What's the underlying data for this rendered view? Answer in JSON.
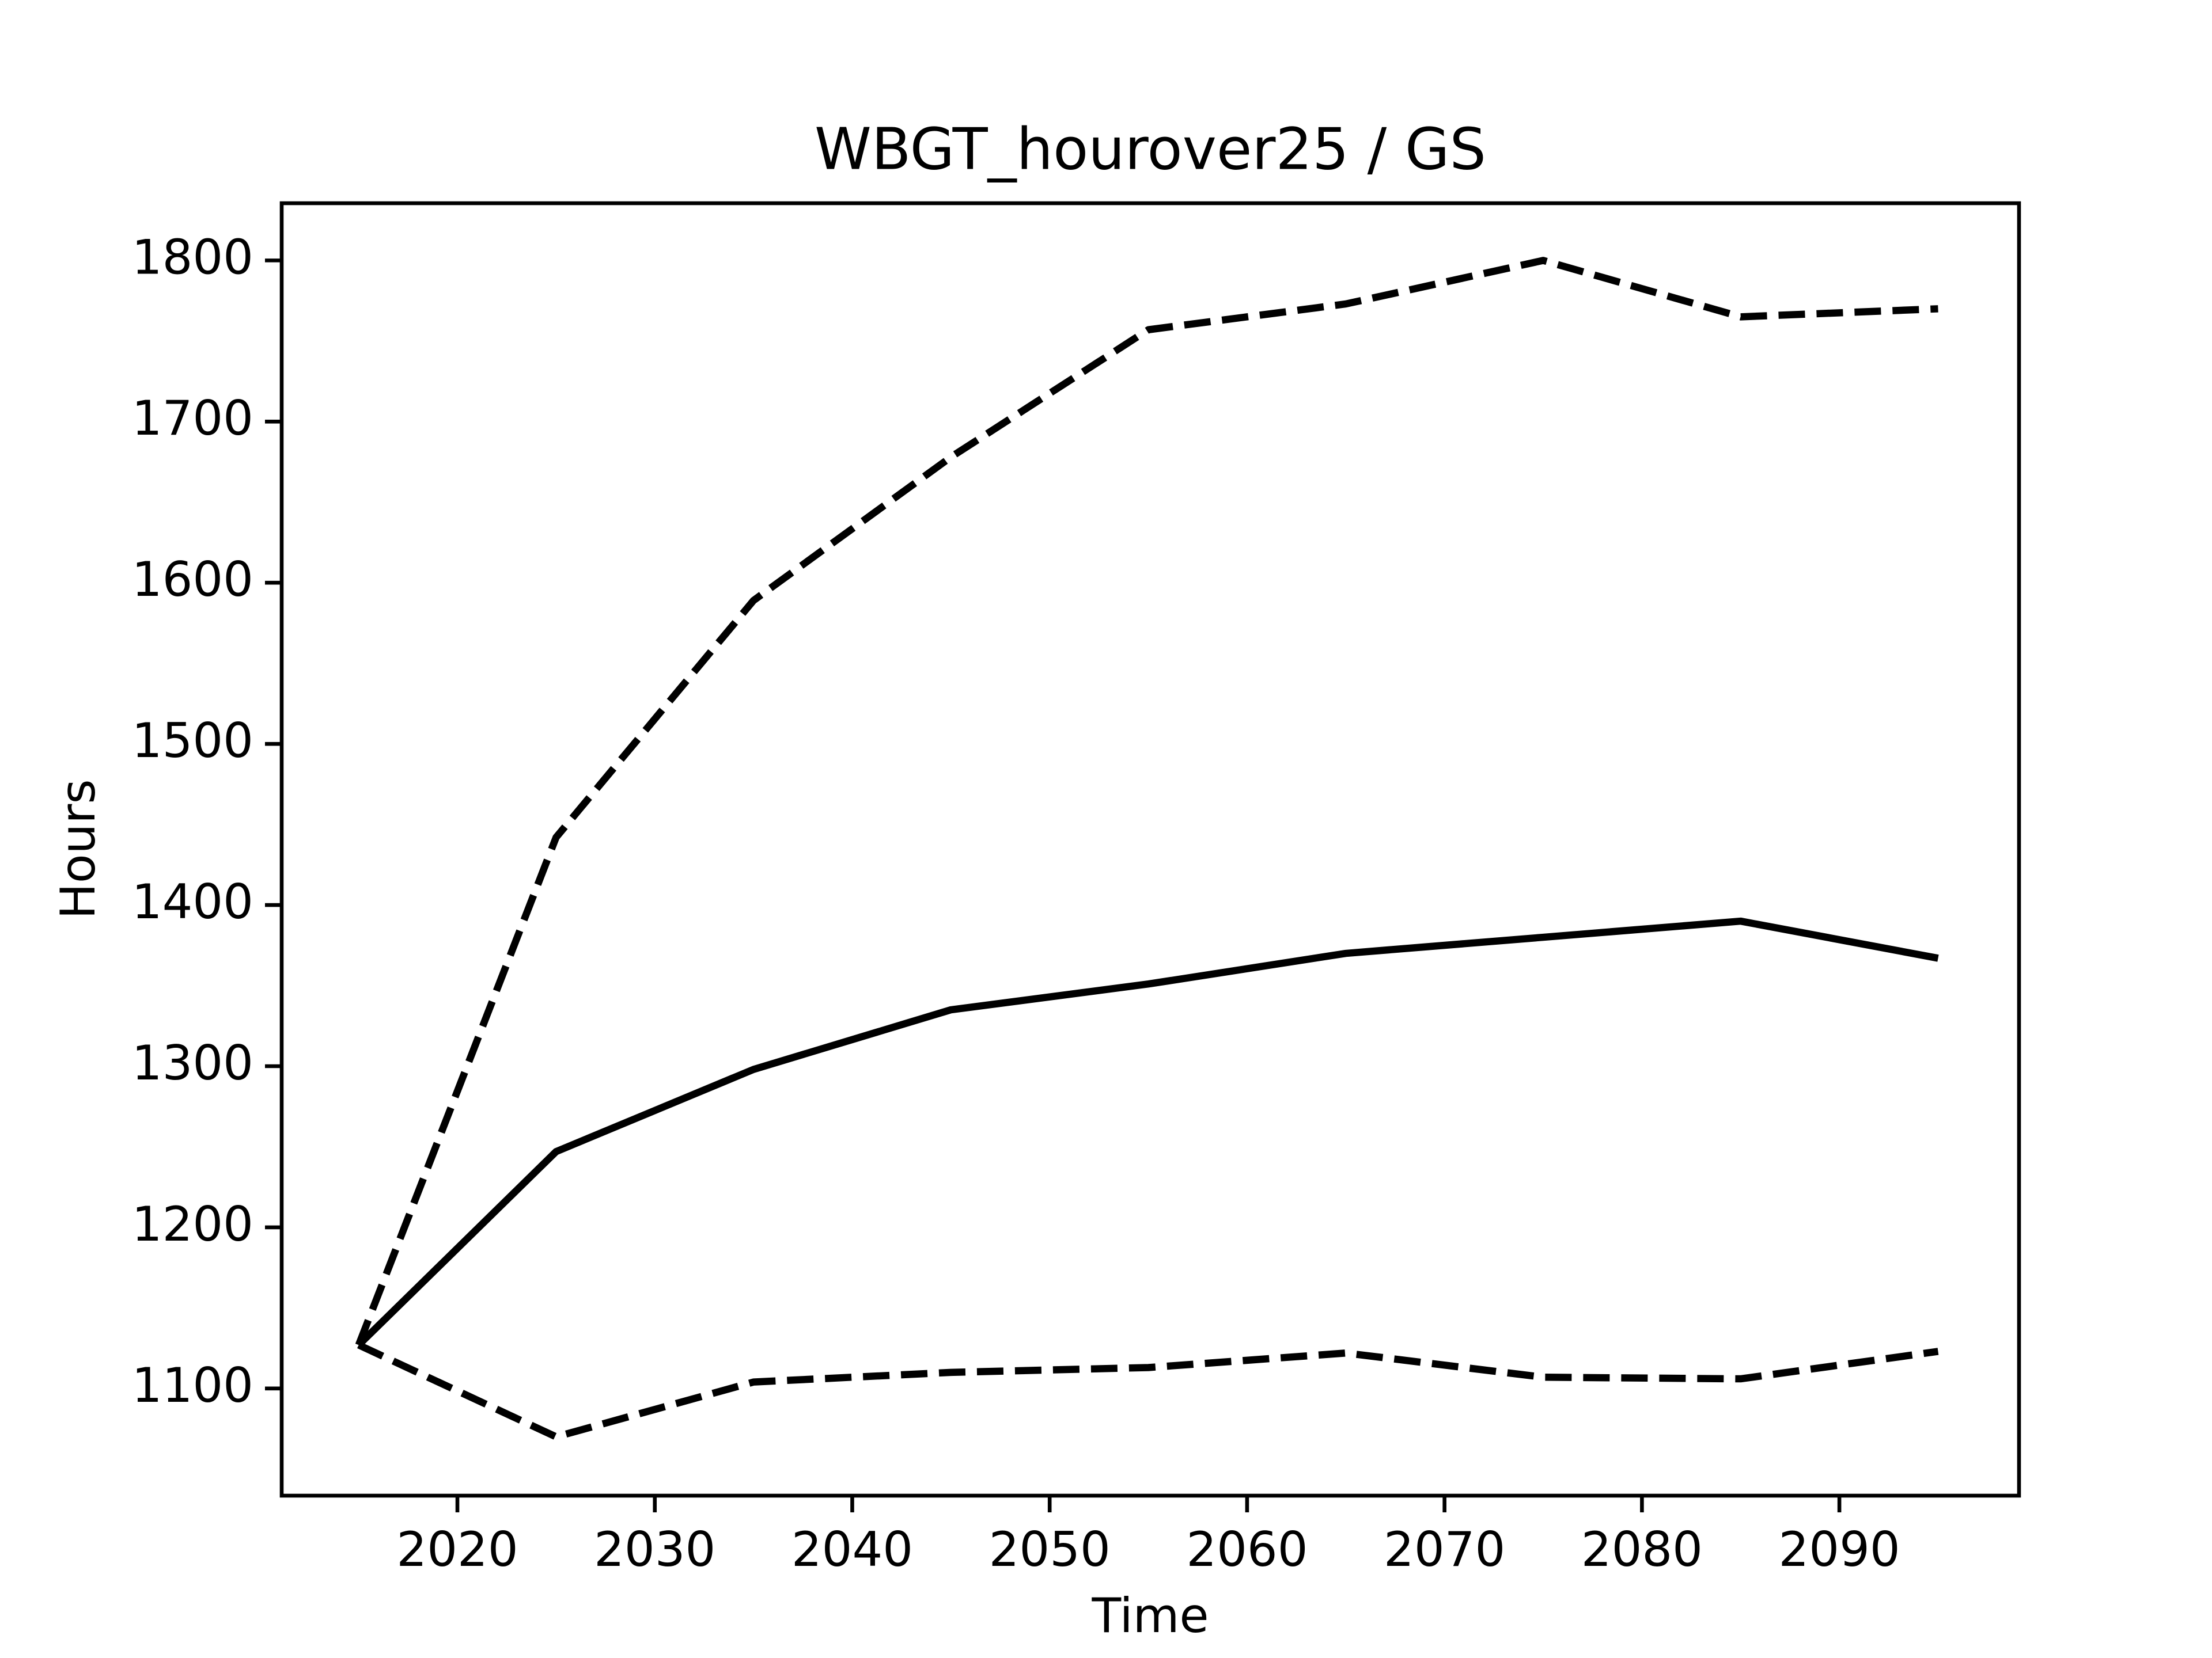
{
  "chart_data": {
    "type": "line",
    "title": "WBGT_hourover25 / GS",
    "x_label": "Time",
    "y_label": "Hours",
    "x": [
      2015,
      2025,
      2035,
      2045,
      2055,
      2065,
      2075,
      2085,
      2095
    ],
    "series": [
      {
        "color": "#000000",
        "linestyle": "solid",
        "values": [
          1127,
          1247,
          1298,
          1335,
          1351,
          1370,
          1380,
          1390,
          1367
        ]
      },
      {
        "color": "#000000",
        "linestyle": "dashed",
        "values": [
          1127,
          1442,
          1589,
          1678,
          1757,
          1773,
          1800,
          1765,
          1770
        ]
      },
      {
        "color": "#000000",
        "linestyle": "dashed",
        "values": [
          1127,
          1070,
          1104,
          1110,
          1113,
          1122,
          1107,
          1106,
          1123
        ]
      }
    ],
    "xlim": [
      2011.1,
      2099.1
    ],
    "xticks": [
      2020,
      2030,
      2040,
      2050,
      2060,
      2070,
      2080,
      2090
    ],
    "ylim": [
      1033.5,
      1835.5
    ],
    "yticks": [
      1100,
      1200,
      1300,
      1400,
      1500,
      1600,
      1700,
      1800
    ],
    "grid": false
  }
}
